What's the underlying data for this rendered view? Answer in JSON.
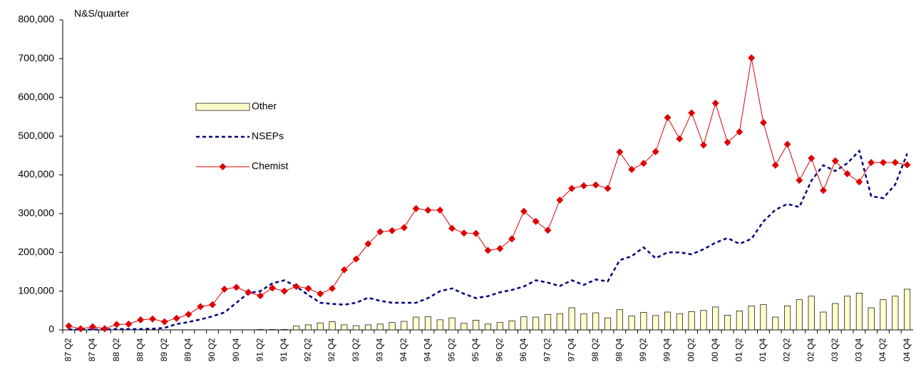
{
  "chart_data": {
    "type": "combo",
    "y_label": "N&S/quarter",
    "categories": [
      "87 Q2",
      null,
      "87 Q4",
      null,
      "88 Q2",
      null,
      "88 Q4",
      null,
      "89 Q2",
      null,
      "89 Q4",
      null,
      "90 Q2",
      null,
      "90 Q4",
      null,
      "91 Q2",
      null,
      "91 Q4",
      null,
      "92 Q2",
      null,
      "92 Q4",
      null,
      "93 Q2",
      null,
      "93 Q4",
      null,
      "94 Q2",
      null,
      "94 Q4",
      null,
      "95 Q2",
      null,
      "95 Q4",
      null,
      "96 Q2",
      null,
      "96 Q4",
      null,
      "97 Q2",
      null,
      "97 Q4",
      null,
      "98 Q2",
      null,
      "98 Q4",
      null,
      "99 Q2",
      null,
      "99 Q4",
      null,
      "00 Q2",
      null,
      "00 Q4",
      null,
      "01 Q2",
      null,
      "01 Q4",
      null,
      "02 Q2",
      null,
      "02 Q4",
      null,
      "03 Q2",
      null,
      "03 Q4",
      null,
      "04 Q2",
      null,
      "04 Q4"
    ],
    "series": [
      {
        "name": "Other",
        "kind": "bar",
        "color": "#ffffcc",
        "values": [
          0,
          0,
          0,
          0,
          0,
          0,
          0,
          0,
          0,
          0,
          0,
          0,
          0,
          0,
          0,
          0,
          1000,
          1000,
          1000,
          10000,
          13000,
          18000,
          21000,
          13000,
          11000,
          13000,
          15000,
          19000,
          22000,
          33000,
          34000,
          26000,
          31000,
          17000,
          25000,
          15000,
          19000,
          23000,
          34000,
          33000,
          40000,
          42000,
          57000,
          42000,
          44000,
          31000,
          52000,
          36000,
          45000,
          37000,
          46000,
          42000,
          47000,
          50000,
          59000,
          38000,
          49000,
          62000,
          65000,
          33000,
          62000,
          78000,
          87000,
          46000,
          68000,
          87000,
          95000,
          57000,
          78000,
          87000,
          105000
        ]
      },
      {
        "name": "NSEPs",
        "kind": "dashed",
        "color": "#000080",
        "values": [
          1000,
          1000,
          1000,
          1000,
          2000,
          2000,
          2000,
          3000,
          5000,
          15000,
          20000,
          27000,
          35000,
          45000,
          70000,
          95000,
          100000,
          120000,
          128000,
          112000,
          90000,
          70000,
          67000,
          65000,
          70000,
          83000,
          75000,
          70000,
          70000,
          70000,
          82000,
          100000,
          107000,
          93000,
          82000,
          87000,
          97000,
          103000,
          112000,
          128000,
          122000,
          113000,
          128000,
          116000,
          130000,
          125000,
          180000,
          190000,
          213000,
          185000,
          200000,
          200000,
          195000,
          208000,
          225000,
          237000,
          222000,
          235000,
          280000,
          310000,
          325000,
          317000,
          385000,
          425000,
          410000,
          430000,
          462000,
          345000,
          340000,
          375000,
          455000
        ]
      },
      {
        "name": "Chemist",
        "kind": "diamond",
        "color": "#dd0000",
        "values": [
          10000,
          3000,
          8000,
          3000,
          14000,
          15000,
          26000,
          28000,
          21000,
          30000,
          40000,
          60000,
          65000,
          105000,
          110000,
          97000,
          88000,
          108000,
          100000,
          112000,
          107000,
          93000,
          107000,
          155000,
          183000,
          222000,
          253000,
          256000,
          264000,
          313000,
          309000,
          309000,
          262000,
          250000,
          249000,
          205000,
          210000,
          235000,
          306000,
          280000,
          257000,
          335000,
          365000,
          372000,
          374000,
          365000,
          459000,
          414000,
          430000,
          460000,
          548000,
          493000,
          560000,
          477000,
          585000,
          484000,
          511000,
          702000,
          535000,
          425000,
          479000,
          386000,
          443000,
          360000,
          436000,
          403000,
          382000,
          432000,
          432000,
          432000,
          426000
        ]
      }
    ],
    "ylim": [
      0,
      800000
    ],
    "yticks": [
      0,
      {
        "value": 100000,
        "label": "100,000"
      },
      {
        "value": 200000,
        "label": "200,000"
      },
      {
        "value": 300000,
        "label": "300,000"
      },
      {
        "value": 400000,
        "label": "400,000"
      },
      {
        "value": 500000,
        "label": "500,000"
      },
      {
        "value": 600000,
        "label": "600,000"
      },
      {
        "value": 700000,
        "label": "700,000"
      },
      {
        "value": 800000,
        "label": "800,000"
      }
    ],
    "grid": false
  }
}
